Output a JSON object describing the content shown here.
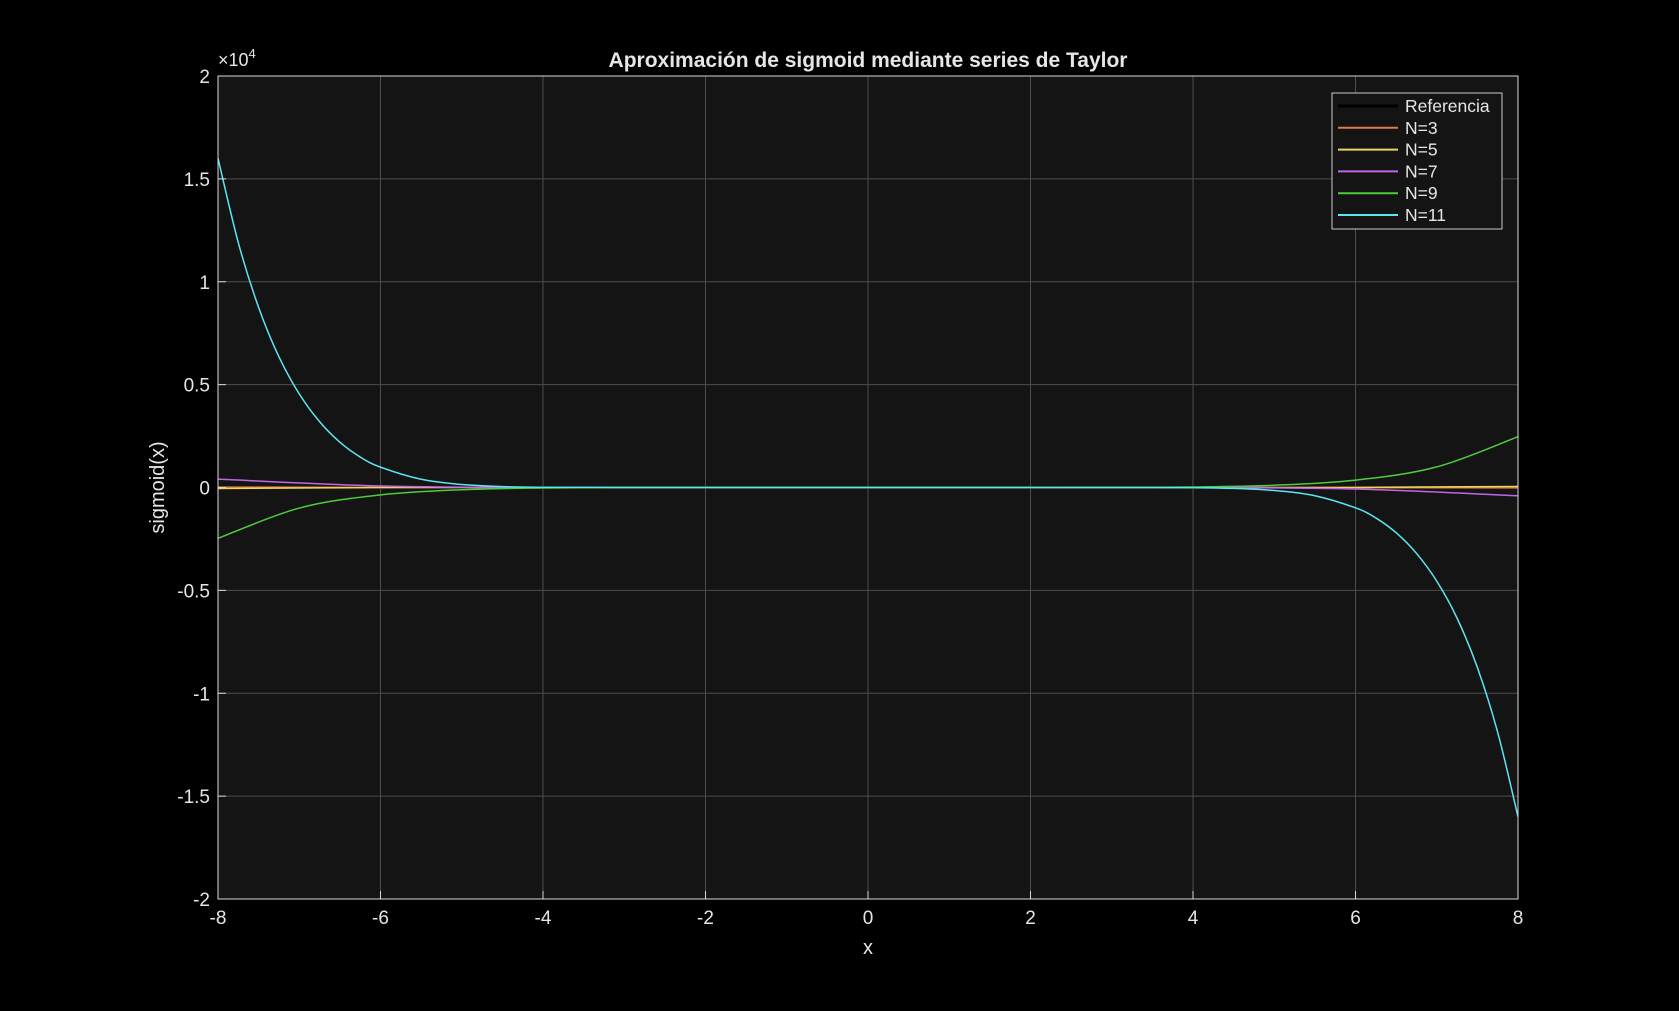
{
  "chart_data": {
    "type": "line",
    "title": "Aproximación de sigmoid mediante series de Taylor",
    "xlabel": "x",
    "ylabel": "sigmoid(x)",
    "y_exponent_label": "×10",
    "y_exponent_power": "4",
    "y_scale_factor": 10000,
    "xlim": [
      -8,
      8
    ],
    "ylim": [
      -20000,
      20000
    ],
    "x_ticks": [
      -8,
      -6,
      -4,
      -2,
      0,
      2,
      4,
      6,
      8
    ],
    "x_tick_labels": [
      "-8",
      "-6",
      "-4",
      "-2",
      "0",
      "2",
      "4",
      "6",
      "8"
    ],
    "y_ticks": [
      -20000,
      -15000,
      -10000,
      -5000,
      0,
      5000,
      10000,
      15000,
      20000
    ],
    "y_tick_labels": [
      "-2",
      "-1.5",
      "-1",
      "-0.5",
      "0",
      "0.5",
      "1",
      "1.5",
      "2"
    ],
    "grid": true,
    "legend_position": "top-right",
    "background": "#141414",
    "axis_color": "#d9d9d9",
    "grid_color": "#4d4d4d",
    "series": [
      {
        "name": "Referencia",
        "color": "#000000",
        "line_width": 2.5,
        "x": [
          -8,
          -6,
          -4,
          -2,
          0,
          2,
          4,
          6,
          8
        ],
        "y": [
          0.0003,
          0.0025,
          0.018,
          0.119,
          0.5,
          0.881,
          0.982,
          0.9975,
          0.9997
        ]
      },
      {
        "name": "N=3",
        "color": "#d9804a",
        "line_width": 1.5,
        "x": [
          -8,
          -6,
          -4,
          -2,
          0,
          2,
          4,
          6,
          8
        ],
        "y": [
          19.83,
          8.5,
          2.33,
          0.17,
          0.5,
          0.83,
          -1.33,
          -7.5,
          -18.83
        ]
      },
      {
        "name": "N=5",
        "color": "#f2d45c",
        "line_width": 1.5,
        "x": [
          -8,
          -6,
          -4,
          -2,
          0,
          2,
          4,
          6,
          8
        ],
        "y": [
          -48.4,
          -7.7,
          -0.27,
          0.35,
          0.5,
          0.65,
          1.27,
          8.7,
          49.4
        ]
      },
      {
        "name": "N=7",
        "color": "#c266e6",
        "line_width": 1.5,
        "x": [
          -8,
          -6,
          -4,
          -2,
          0,
          2,
          4,
          6,
          8
        ],
        "y": [
          405,
          75,
          3.5,
          0.1,
          0.5,
          0.9,
          -2.5,
          -74,
          -404
        ]
      },
      {
        "name": "N=9",
        "color": "#4dcc3d",
        "line_width": 1.5,
        "x": [
          -8,
          -7,
          -6,
          -5,
          -4,
          -3,
          -2,
          0,
          2,
          3,
          4,
          5,
          6,
          7,
          8
        ],
        "y": [
          -2470,
          -1000,
          -360,
          -110,
          -25,
          -3,
          -0.2,
          0.5,
          1.2,
          4,
          26,
          111,
          361,
          1001,
          2471
        ]
      },
      {
        "name": "N=11",
        "color": "#5ce6f2",
        "line_width": 1.5,
        "x": [
          -8,
          -7.75,
          -7.5,
          -7.25,
          -7,
          -6.75,
          -6.5,
          -6.25,
          -6,
          -5.5,
          -5,
          -4.5,
          -4,
          -3,
          -2,
          0,
          2,
          3,
          4,
          4.5,
          5,
          5.5,
          6,
          6.25,
          6.5,
          6.75,
          7,
          7.25,
          7.5,
          7.75,
          8
        ],
        "y": [
          16000,
          11900,
          8750,
          6350,
          4550,
          3200,
          2200,
          1480,
          990,
          400,
          145,
          45,
          12,
          0.8,
          0.1,
          0.5,
          0.9,
          0.2,
          -11,
          -44,
          -144,
          -399,
          -989,
          -1479,
          -2199,
          -3199,
          -4549,
          -6349,
          -8749,
          -11899,
          -15999
        ]
      }
    ]
  }
}
